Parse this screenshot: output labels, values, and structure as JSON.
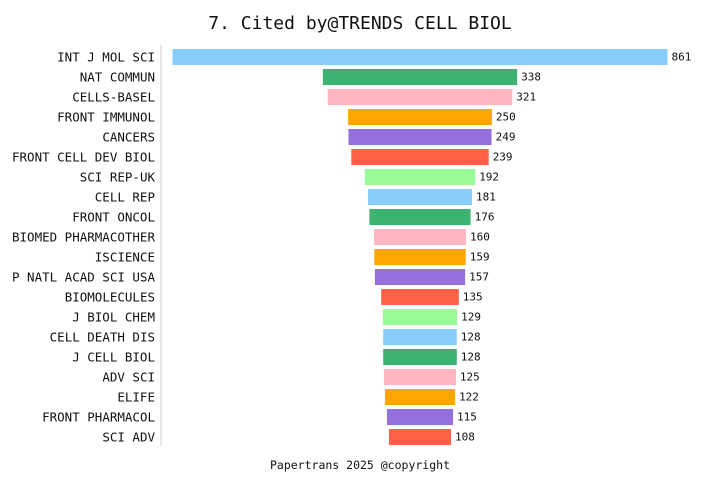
{
  "chart_data": {
    "type": "bar",
    "orientation": "horizontal-centered",
    "title": "7. Cited by@TRENDS CELL BIOL",
    "categories": [
      "INT J MOL SCI",
      "NAT COMMUN",
      "CELLS-BASEL",
      "FRONT IMMUNOL",
      "CANCERS",
      "FRONT CELL DEV BIOL",
      "SCI REP-UK",
      "CELL REP",
      "FRONT ONCOL",
      "BIOMED PHARMACOTHER",
      "ISCIENCE",
      "P NATL ACAD SCI USA",
      "BIOMOLECULES",
      "J BIOL CHEM",
      "CELL DEATH DIS",
      "J CELL BIOL",
      "ADV SCI",
      "ELIFE",
      "FRONT PHARMACOL",
      "SCI ADV"
    ],
    "values": [
      861,
      338,
      321,
      250,
      249,
      239,
      192,
      181,
      176,
      160,
      159,
      157,
      135,
      129,
      128,
      128,
      125,
      122,
      115,
      108
    ],
    "colors": [
      "#87CEFA",
      "#3CB371",
      "#FFB6C1",
      "#FFA500",
      "#9370DB",
      "#FF6347",
      "#98FB98"
    ],
    "xlabel": "",
    "ylabel": "",
    "grid": false,
    "legend": "none"
  },
  "footer": {
    "text": "Papertrans 2025 @copyright"
  }
}
